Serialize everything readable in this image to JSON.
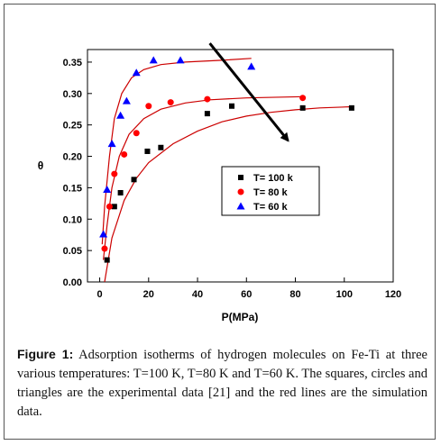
{
  "chart_data": {
    "type": "scatter",
    "xlabel": "P(MPa)",
    "ylabel": "θ",
    "xlim": [
      -5,
      120
    ],
    "ylim": [
      0,
      0.37
    ],
    "x_ticks": [
      0,
      20,
      40,
      60,
      80,
      100,
      120
    ],
    "y_ticks": [
      0.0,
      0.05,
      0.1,
      0.15,
      0.2,
      0.25,
      0.3,
      0.35
    ],
    "y_tick_labels": [
      "0.00",
      "0.05",
      "0.10",
      "0.15",
      "0.20",
      "0.25",
      "0.30",
      "0.35"
    ],
    "legend_position": "center-right",
    "series": [
      {
        "name": "T= 100  k",
        "marker": "square",
        "color": "#000000",
        "points": [
          [
            3,
            0.035
          ],
          [
            6,
            0.12
          ],
          [
            8.5,
            0.142
          ],
          [
            14,
            0.163
          ],
          [
            19.5,
            0.208
          ],
          [
            25,
            0.214
          ],
          [
            44,
            0.268
          ],
          [
            54,
            0.28
          ],
          [
            83,
            0.277
          ],
          [
            103,
            0.277
          ]
        ],
        "fit": [
          [
            2,
            0.0
          ],
          [
            5,
            0.07
          ],
          [
            10,
            0.13
          ],
          [
            15,
            0.165
          ],
          [
            20,
            0.19
          ],
          [
            30,
            0.22
          ],
          [
            40,
            0.24
          ],
          [
            50,
            0.255
          ],
          [
            60,
            0.264
          ],
          [
            70,
            0.27
          ],
          [
            80,
            0.274
          ],
          [
            90,
            0.277
          ],
          [
            103,
            0.279
          ]
        ]
      },
      {
        "name": "T= 80   k",
        "marker": "circle",
        "color": "#ff0000",
        "points": [
          [
            2,
            0.053
          ],
          [
            4,
            0.12
          ],
          [
            6,
            0.172
          ],
          [
            10,
            0.203
          ],
          [
            15,
            0.237
          ],
          [
            20,
            0.28
          ],
          [
            29,
            0.286
          ],
          [
            44,
            0.291
          ],
          [
            83,
            0.293
          ]
        ],
        "fit": [
          [
            1.5,
            0.035
          ],
          [
            3,
            0.09
          ],
          [
            5,
            0.15
          ],
          [
            8,
            0.2
          ],
          [
            12,
            0.235
          ],
          [
            18,
            0.26
          ],
          [
            25,
            0.275
          ],
          [
            35,
            0.285
          ],
          [
            45,
            0.29
          ],
          [
            60,
            0.293
          ],
          [
            83,
            0.295
          ]
        ]
      },
      {
        "name": "T= 60   k",
        "marker": "triangle",
        "color": "#0000ff",
        "points": [
          [
            1.5,
            0.076
          ],
          [
            3,
            0.147
          ],
          [
            5,
            0.22
          ],
          [
            8.5,
            0.265
          ],
          [
            11,
            0.288
          ],
          [
            15,
            0.333
          ],
          [
            22,
            0.353
          ],
          [
            33,
            0.353
          ],
          [
            62,
            0.343
          ]
        ],
        "fit": [
          [
            1,
            0.06
          ],
          [
            2,
            0.12
          ],
          [
            4,
            0.2
          ],
          [
            6,
            0.26
          ],
          [
            9,
            0.3
          ],
          [
            13,
            0.325
          ],
          [
            18,
            0.338
          ],
          [
            25,
            0.346
          ],
          [
            35,
            0.35
          ],
          [
            50,
            0.353
          ],
          [
            62,
            0.356
          ]
        ]
      }
    ],
    "annotations": [
      {
        "type": "arrow",
        "from": [
          45,
          0.38
        ],
        "to": [
          77,
          0.225
        ]
      }
    ]
  },
  "caption": {
    "label": "Figure 1:",
    "text": " Adsorption isotherms of hydrogen molecules on Fe-Ti at three various temperatures: T=100 K, T=80 K and T=60 K. The squares, circles and triangles are the experimental data [21] and the red lines are the simulation data."
  }
}
